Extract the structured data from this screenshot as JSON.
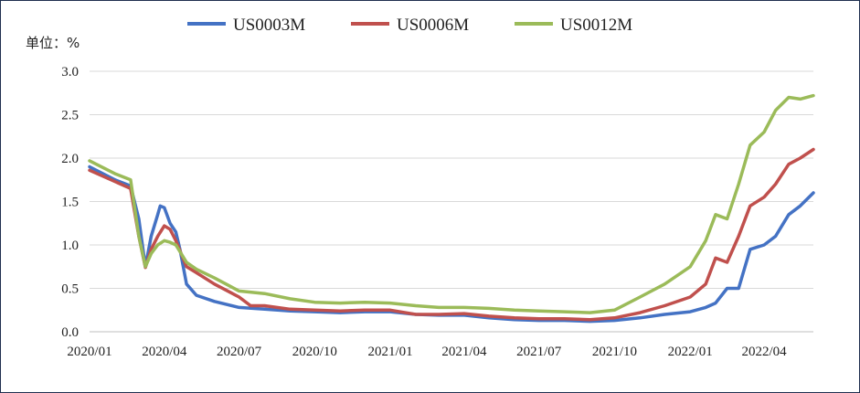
{
  "chart_data": {
    "type": "line",
    "unit_label": "单位：%",
    "ylim": [
      0,
      3.0
    ],
    "y_ticks": [
      "0.0",
      "0.5",
      "1.0",
      "1.5",
      "2.0",
      "2.5",
      "3.0"
    ],
    "x_tick_labels": [
      "2020/01",
      "2020/04",
      "2020/07",
      "2020/10",
      "2021/01",
      "2021/04",
      "2021/07",
      "2021/10",
      "2022/01",
      "2022/04"
    ],
    "x_ticks": [
      "2020-01-01",
      "2020-04-01",
      "2020-07-01",
      "2020-10-01",
      "2021-01-01",
      "2021-04-01",
      "2021-07-01",
      "2021-10-01",
      "2022-01-01",
      "2022-04-01"
    ],
    "x_range": [
      "2020-01-01",
      "2022-05-31"
    ],
    "grid": "horizontal",
    "legend": "top-center",
    "series": [
      {
        "name": "US0003M",
        "color": "#4472c4",
        "points": [
          [
            "2020-01-01",
            1.9
          ],
          [
            "2020-02-01",
            1.75
          ],
          [
            "2020-02-20",
            1.68
          ],
          [
            "2020-03-01",
            1.3
          ],
          [
            "2020-03-09",
            0.75
          ],
          [
            "2020-03-16",
            1.1
          ],
          [
            "2020-03-24",
            1.35
          ],
          [
            "2020-03-27",
            1.45
          ],
          [
            "2020-04-01",
            1.43
          ],
          [
            "2020-04-08",
            1.25
          ],
          [
            "2020-04-15",
            1.15
          ],
          [
            "2020-04-20",
            0.95
          ],
          [
            "2020-04-28",
            0.55
          ],
          [
            "2020-05-10",
            0.42
          ],
          [
            "2020-06-01",
            0.35
          ],
          [
            "2020-07-01",
            0.28
          ],
          [
            "2020-08-01",
            0.26
          ],
          [
            "2020-09-01",
            0.24
          ],
          [
            "2020-10-01",
            0.23
          ],
          [
            "2020-11-01",
            0.22
          ],
          [
            "2020-12-01",
            0.23
          ],
          [
            "2021-01-01",
            0.23
          ],
          [
            "2021-02-01",
            0.2
          ],
          [
            "2021-03-01",
            0.19
          ],
          [
            "2021-04-01",
            0.19
          ],
          [
            "2021-05-01",
            0.16
          ],
          [
            "2021-06-01",
            0.14
          ],
          [
            "2021-07-01",
            0.13
          ],
          [
            "2021-08-01",
            0.13
          ],
          [
            "2021-09-01",
            0.12
          ],
          [
            "2021-10-01",
            0.13
          ],
          [
            "2021-11-01",
            0.16
          ],
          [
            "2021-12-01",
            0.2
          ],
          [
            "2022-01-01",
            0.23
          ],
          [
            "2022-01-20",
            0.28
          ],
          [
            "2022-02-01",
            0.33
          ],
          [
            "2022-02-15",
            0.5
          ],
          [
            "2022-03-01",
            0.5
          ],
          [
            "2022-03-15",
            0.95
          ],
          [
            "2022-04-01",
            1.0
          ],
          [
            "2022-04-15",
            1.1
          ],
          [
            "2022-05-01",
            1.35
          ],
          [
            "2022-05-15",
            1.45
          ],
          [
            "2022-05-31",
            1.6
          ]
        ]
      },
      {
        "name": "US0006M",
        "color": "#c0504d",
        "points": [
          [
            "2020-01-01",
            1.86
          ],
          [
            "2020-02-01",
            1.73
          ],
          [
            "2020-02-20",
            1.65
          ],
          [
            "2020-03-01",
            1.1
          ],
          [
            "2020-03-09",
            0.74
          ],
          [
            "2020-03-16",
            0.95
          ],
          [
            "2020-03-24",
            1.1
          ],
          [
            "2020-04-01",
            1.22
          ],
          [
            "2020-04-08",
            1.18
          ],
          [
            "2020-04-15",
            1.05
          ],
          [
            "2020-04-28",
            0.75
          ],
          [
            "2020-05-10",
            0.68
          ],
          [
            "2020-06-01",
            0.55
          ],
          [
            "2020-07-01",
            0.4
          ],
          [
            "2020-07-15",
            0.3
          ],
          [
            "2020-08-01",
            0.3
          ],
          [
            "2020-09-01",
            0.26
          ],
          [
            "2020-10-01",
            0.25
          ],
          [
            "2020-11-01",
            0.24
          ],
          [
            "2020-12-01",
            0.25
          ],
          [
            "2021-01-01",
            0.25
          ],
          [
            "2021-02-01",
            0.2
          ],
          [
            "2021-03-01",
            0.2
          ],
          [
            "2021-04-01",
            0.21
          ],
          [
            "2021-05-01",
            0.18
          ],
          [
            "2021-06-01",
            0.16
          ],
          [
            "2021-07-01",
            0.15
          ],
          [
            "2021-08-01",
            0.15
          ],
          [
            "2021-09-01",
            0.14
          ],
          [
            "2021-10-01",
            0.16
          ],
          [
            "2021-11-01",
            0.22
          ],
          [
            "2021-12-01",
            0.3
          ],
          [
            "2022-01-01",
            0.4
          ],
          [
            "2022-01-20",
            0.55
          ],
          [
            "2022-02-01",
            0.85
          ],
          [
            "2022-02-15",
            0.8
          ],
          [
            "2022-03-01",
            1.1
          ],
          [
            "2022-03-15",
            1.45
          ],
          [
            "2022-04-01",
            1.55
          ],
          [
            "2022-04-15",
            1.7
          ],
          [
            "2022-05-01",
            1.93
          ],
          [
            "2022-05-15",
            2.0
          ],
          [
            "2022-05-31",
            2.1
          ]
        ]
      },
      {
        "name": "US0012M",
        "color": "#9bbb59",
        "points": [
          [
            "2020-01-01",
            1.97
          ],
          [
            "2020-02-01",
            1.82
          ],
          [
            "2020-02-20",
            1.75
          ],
          [
            "2020-03-01",
            1.1
          ],
          [
            "2020-03-09",
            0.75
          ],
          [
            "2020-03-16",
            0.9
          ],
          [
            "2020-03-24",
            1.0
          ],
          [
            "2020-04-01",
            1.05
          ],
          [
            "2020-04-08",
            1.03
          ],
          [
            "2020-04-15",
            1.0
          ],
          [
            "2020-04-28",
            0.8
          ],
          [
            "2020-05-10",
            0.72
          ],
          [
            "2020-06-01",
            0.62
          ],
          [
            "2020-07-01",
            0.47
          ],
          [
            "2020-08-01",
            0.44
          ],
          [
            "2020-09-01",
            0.38
          ],
          [
            "2020-10-01",
            0.34
          ],
          [
            "2020-11-01",
            0.33
          ],
          [
            "2020-12-01",
            0.34
          ],
          [
            "2021-01-01",
            0.33
          ],
          [
            "2021-02-01",
            0.3
          ],
          [
            "2021-03-01",
            0.28
          ],
          [
            "2021-04-01",
            0.28
          ],
          [
            "2021-05-01",
            0.27
          ],
          [
            "2021-06-01",
            0.25
          ],
          [
            "2021-07-01",
            0.24
          ],
          [
            "2021-08-01",
            0.23
          ],
          [
            "2021-09-01",
            0.22
          ],
          [
            "2021-10-01",
            0.25
          ],
          [
            "2021-11-01",
            0.4
          ],
          [
            "2021-12-01",
            0.55
          ],
          [
            "2022-01-01",
            0.75
          ],
          [
            "2022-01-20",
            1.05
          ],
          [
            "2022-02-01",
            1.35
          ],
          [
            "2022-02-15",
            1.3
          ],
          [
            "2022-03-01",
            1.7
          ],
          [
            "2022-03-15",
            2.15
          ],
          [
            "2022-04-01",
            2.3
          ],
          [
            "2022-04-15",
            2.55
          ],
          [
            "2022-05-01",
            2.7
          ],
          [
            "2022-05-15",
            2.68
          ],
          [
            "2022-05-31",
            2.72
          ]
        ]
      }
    ]
  }
}
